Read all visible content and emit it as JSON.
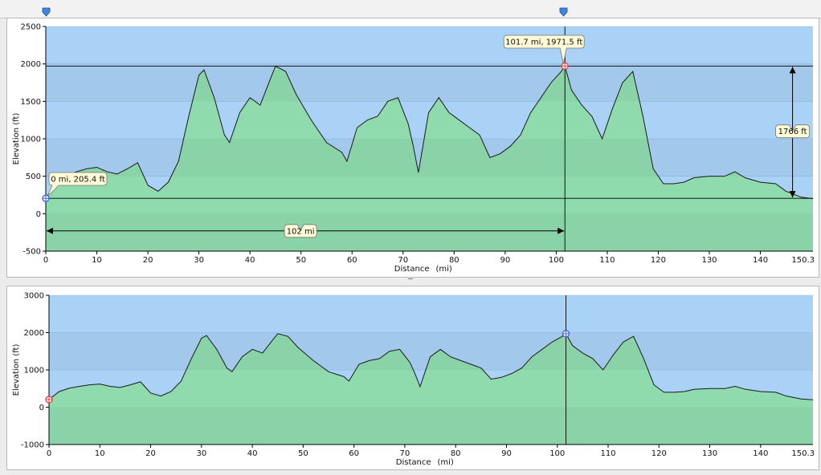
{
  "colors": {
    "sky": "#a9d2f6",
    "fill": "#8edbaa",
    "fill_below_zero": "#8edbaa",
    "line": "#1a1a1a",
    "callout_bg": "#fefbd6",
    "marker_start_top": "#4060e0",
    "marker_end_top": "#e04040",
    "marker_start_bottom": "#e04040",
    "marker_end_bottom": "#4060e0"
  },
  "chart_data": [
    {
      "type": "area",
      "title": "",
      "xlabel": "Distance",
      "xunit": "(mi)",
      "ylabel": "Elevation (ft)",
      "xlim": [
        0,
        150.3
      ],
      "ylim": [
        -500,
        2500
      ],
      "yticks": [
        -500,
        0,
        500,
        1000,
        1500,
        2000,
        2500
      ],
      "xticks": [
        0,
        10,
        20,
        30,
        40,
        50,
        60,
        70,
        80,
        90,
        100,
        110,
        120,
        130,
        140
      ],
      "xtick_last": "150.3",
      "series": [
        {
          "x": [
            0,
            2,
            4,
            6,
            8,
            10,
            12,
            14,
            16,
            18,
            20,
            22,
            24,
            26,
            28,
            30,
            31,
            33,
            35,
            36,
            38,
            40,
            42,
            44,
            45,
            47,
            49,
            52,
            55,
            58,
            59,
            61,
            63,
            65,
            67,
            69,
            71,
            72,
            73,
            75,
            77,
            79,
            81,
            83,
            85,
            87,
            89,
            91,
            93,
            95,
            97,
            99,
            101,
            101.7,
            103,
            105,
            107,
            109,
            111,
            113,
            115,
            117,
            119,
            121,
            123,
            125,
            127,
            130,
            133,
            135,
            137,
            140,
            143,
            145,
            148,
            150.3
          ],
          "y": [
            205,
            420,
            510,
            560,
            600,
            620,
            560,
            530,
            600,
            680,
            380,
            300,
            420,
            700,
            1300,
            1850,
            1920,
            1550,
            1050,
            950,
            1350,
            1550,
            1450,
            1800,
            1970,
            1900,
            1600,
            1250,
            950,
            820,
            700,
            1150,
            1250,
            1300,
            1500,
            1550,
            1200,
            900,
            550,
            1350,
            1550,
            1350,
            1250,
            1150,
            1050,
            750,
            800,
            900,
            1050,
            1350,
            1550,
            1750,
            1900,
            1971.5,
            1650,
            1450,
            1300,
            1000,
            1400,
            1750,
            1900,
            1300,
            600,
            400,
            400,
            420,
            480,
            500,
            500,
            560,
            480,
            420,
            400,
            300,
            220,
            200
          ]
        }
      ],
      "annotations": {
        "start_label": "0 mi, 205.4 ft",
        "end_label": "101.7 mi, 1971.5 ft",
        "distance_label": "102 mi",
        "gain_label": "1766 ft"
      }
    },
    {
      "type": "area",
      "title": "",
      "xlabel": "Distance",
      "xunit": "(mi)",
      "ylabel": "Elevation (ft)",
      "xlim": [
        0,
        150.3
      ],
      "ylim": [
        -1000,
        3000
      ],
      "yticks": [
        -1000,
        0,
        1000,
        2000,
        3000
      ],
      "xticks": [
        0,
        10,
        20,
        30,
        40,
        50,
        60,
        70,
        80,
        90,
        100,
        110,
        120,
        130,
        140
      ],
      "xtick_last": "150.3",
      "cursor_x": 101.7
    }
  ]
}
